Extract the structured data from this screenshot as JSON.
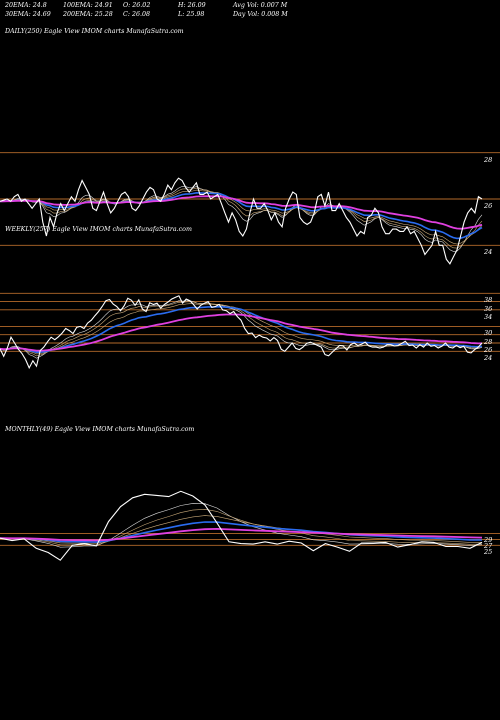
{
  "header": {
    "row1": [
      {
        "label": "20EMA",
        "value": "24.8"
      },
      {
        "label": "100EMA",
        "value": "24.91"
      },
      {
        "label": "O",
        "value": "26.02"
      },
      {
        "label": "H",
        "value": "26.09"
      },
      {
        "label": "Avg Vol",
        "value": "0.007 M"
      }
    ],
    "row2": [
      {
        "label": "30EMA",
        "value": "24.69"
      },
      {
        "label": "200EMA",
        "value": "25.28"
      },
      {
        "label": "C",
        "value": "26.08"
      },
      {
        "label": "L",
        "value": "25.98"
      },
      {
        "label": "Day Vol",
        "value": "0.008 M"
      }
    ]
  },
  "colors": {
    "background": "#000000",
    "price": "#ffffff",
    "ema_magenta": "#e040e0",
    "ema_blue": "#2a6cf0",
    "ema_tan": "#c8a878",
    "ema_white": "#dddddd",
    "ref_line": "#b56a2a"
  },
  "chart_data": [
    {
      "type": "line",
      "label": "DAILY(250) Eagle  View  IMOM charts MunafaSutra.com",
      "yticks": [
        28,
        26,
        24
      ],
      "ylim": [
        22.5,
        29.5
      ],
      "ref_lines": [
        28,
        26,
        24
      ],
      "price": [
        25.9,
        25.95,
        26.0,
        25.9,
        26.1,
        26.2,
        25.9,
        26.0,
        25.8,
        25.6,
        25.8,
        26.0,
        25.0,
        24.4,
        25.2,
        24.8,
        25.4,
        25.8,
        25.5,
        25.8,
        26.1,
        25.9,
        26.4,
        26.8,
        26.5,
        26.2,
        25.6,
        25.5,
        25.9,
        26.3,
        25.8,
        25.4,
        25.6,
        25.9,
        26.2,
        26.3,
        26.1,
        25.6,
        25.5,
        25.7,
        26.0,
        26.3,
        26.5,
        26.4,
        26.0,
        25.9,
        26.2,
        26.6,
        26.4,
        26.7,
        26.9,
        26.8,
        26.5,
        26.3,
        26.5,
        26.7,
        26.2,
        26.2,
        26.3,
        26.0,
        26.1,
        26.2,
        25.8,
        25.4,
        25.0,
        25.4,
        25.1,
        24.6,
        24.4,
        24.7,
        25.4,
        26.0,
        25.6,
        25.6,
        25.8,
        25.5,
        25.1,
        25.4,
        25.0,
        24.8,
        25.6,
        26.0,
        26.3,
        26.2,
        25.2,
        25.0,
        24.9,
        25.0,
        25.4,
        26.1,
        26.2,
        25.7,
        26.3,
        25.5,
        25.5,
        25.8,
        25.5,
        25.2,
        25.0,
        24.7,
        24.4,
        24.6,
        24.5,
        25.2,
        25.3,
        25.6,
        25.4,
        24.8,
        24.5,
        24.5,
        24.7,
        24.7,
        24.6,
        24.6,
        24.8,
        24.5,
        24.6,
        24.3,
        24.0,
        23.6,
        23.8,
        24.0,
        24.6,
        24.0,
        24.0,
        23.4,
        23.2,
        23.5,
        23.8,
        24.4,
        25.0,
        25.4,
        25.6,
        25.4,
        26.1,
        26.0
      ]
    },
    {
      "type": "line",
      "label": "WEEKLY(257) Eagle  View  IMOM charts MunafaSutra.com",
      "yticks": [
        38,
        36,
        34,
        30,
        28,
        26,
        24
      ],
      "ylim": [
        19,
        40
      ],
      "ref_lines": [
        38,
        36,
        34,
        30,
        28,
        26,
        24
      ],
      "price": [
        24.6,
        22.8,
        24.8,
        27.4,
        26.0,
        24.5,
        23.5,
        22.0,
        20.0,
        21.7,
        20.4,
        24.2,
        25.0,
        26.3,
        27.4,
        26.8,
        27.5,
        28.4,
        29.5,
        29.0,
        28.3,
        29.8,
        30.0,
        29.5,
        30.8,
        31.5,
        32.6,
        33.6,
        34.8,
        36.2,
        36.5,
        35.4,
        34.8,
        33.8,
        35.0,
        36.8,
        36.3,
        35.1,
        36.4,
        34.2,
        33.6,
        35.7,
        35.3,
        35.6,
        34.4,
        35.3,
        35.9,
        36.6,
        37.0,
        37.4,
        35.6,
        36.6,
        36.2,
        35.3,
        34.2,
        35.1,
        35.6,
        36.0,
        34.6,
        34.8,
        35.3,
        34.0,
        33.8,
        33.1,
        33.6,
        32.4,
        31.5,
        29.5,
        28.3,
        28.4,
        27.3,
        27.9,
        27.4,
        27.2,
        26.5,
        27.3,
        26.6,
        24.5,
        24.0,
        25.0,
        26.0,
        24.7,
        24.4,
        25.0,
        25.9,
        26.2,
        25.8,
        25.4,
        25.0,
        23.2,
        22.9,
        23.8,
        24.6,
        25.4,
        25.3,
        24.3,
        25.6,
        26.0,
        25.4,
        25.7,
        26.2,
        25.3,
        25.0,
        25.0,
        24.8,
        25.0,
        25.6,
        25.6,
        25.3,
        25.4,
        25.9,
        26.4,
        25.4,
        25.5,
        24.8,
        25.6,
        25.0,
        26.0,
        25.2,
        25.4,
        24.8,
        25.2,
        26.0,
        25.0,
        24.8,
        25.4,
        24.9,
        25.2,
        23.8,
        23.6,
        24.4,
        25.0,
        26.0
      ]
    },
    {
      "type": "line",
      "label": "MONTHLY(49) Eagle  View  IMOM charts MunafaSutra.com",
      "yticks": [
        29,
        27,
        25
      ],
      "ylim": [
        14,
        47
      ],
      "ref_lines": [
        29,
        27,
        25
      ],
      "price": [
        27.4,
        26.6,
        27.2,
        24.0,
        22.6,
        20.0,
        25.0,
        25.6,
        24.8,
        33.0,
        38.0,
        41.0,
        42.2,
        41.8,
        41.4,
        43.2,
        41.6,
        38.6,
        32.6,
        26.2,
        25.6,
        25.4,
        26.2,
        25.4,
        26.4,
        25.8,
        23.2,
        25.6,
        24.4,
        23.0,
        25.8,
        25.8,
        26.0,
        24.4,
        25.2,
        26.2,
        26.0,
        24.6,
        24.6,
        24.0,
        26.0
      ]
    }
  ]
}
